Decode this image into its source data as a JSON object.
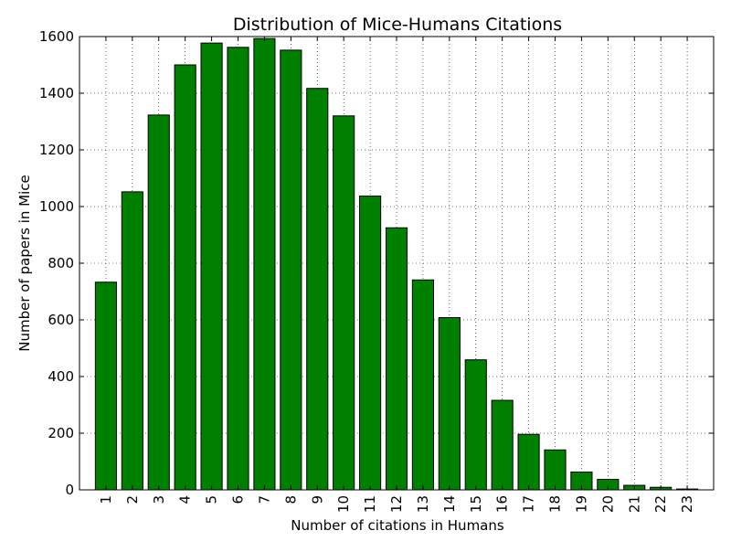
{
  "chart_data": {
    "type": "bar",
    "title": "Distribution of Mice-Humans Citations",
    "xlabel": "Number of citations in Humans",
    "ylabel": "Number of papers in Mice",
    "categories": [
      "1",
      "2",
      "3",
      "4",
      "5",
      "6",
      "7",
      "8",
      "9",
      "10",
      "11",
      "12",
      "13",
      "14",
      "15",
      "16",
      "17",
      "18",
      "19",
      "20",
      "21",
      "22",
      "23"
    ],
    "values": [
      733,
      1052,
      1323,
      1500,
      1577,
      1562,
      1593,
      1552,
      1417,
      1320,
      1037,
      925,
      741,
      608,
      459,
      316,
      196,
      141,
      63,
      37,
      16,
      9,
      3
    ],
    "ylim": [
      0,
      1600
    ],
    "yticks": [
      0,
      200,
      400,
      600,
      800,
      1000,
      1200,
      1400,
      1600
    ],
    "xlim": [
      0,
      24
    ],
    "grid": true,
    "bar_color": "#008000",
    "edge_color": "#000000"
  }
}
